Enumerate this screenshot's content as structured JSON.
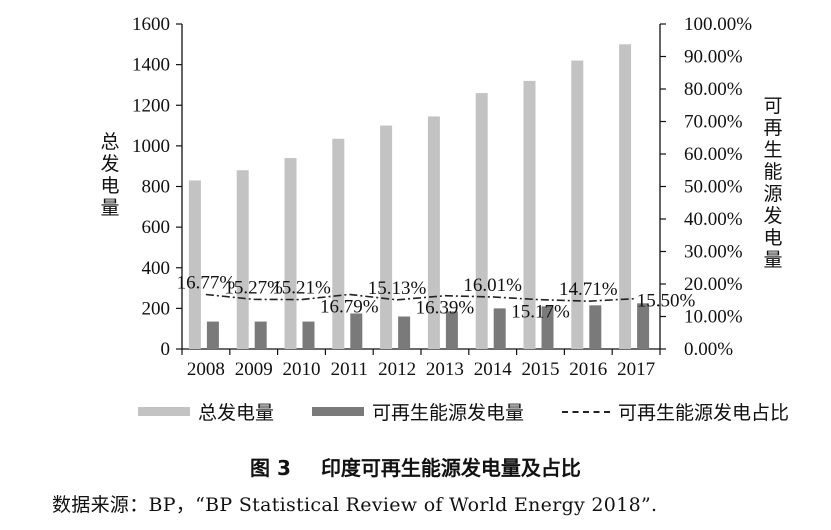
{
  "chart_data": {
    "type": "bar",
    "categories": [
      "2008",
      "2009",
      "2010",
      "2011",
      "2012",
      "2013",
      "2014",
      "2015",
      "2016",
      "2017"
    ],
    "series": [
      {
        "name": "总发电量",
        "type": "bar",
        "axis": "left",
        "color": "#c3c3c3",
        "values": [
          830,
          880,
          940,
          1035,
          1100,
          1145,
          1260,
          1320,
          1420,
          1500
        ]
      },
      {
        "name": "可再生能源发电量",
        "type": "bar",
        "axis": "left",
        "color": "#7a7a7a",
        "values": [
          135,
          135,
          135,
          175,
          160,
          185,
          200,
          210,
          215,
          225
        ]
      },
      {
        "name": "可再生能源发电占比",
        "type": "line",
        "axis": "right",
        "color": "#222222",
        "style": "dash-dot",
        "values": [
          16.77,
          15.27,
          15.21,
          16.79,
          15.13,
          16.39,
          16.01,
          15.17,
          14.71,
          15.5
        ],
        "labels": [
          "16.77%",
          "15.27%",
          "15.21%",
          "16.79%",
          "15.13%",
          "16.39%",
          "16.01%",
          "15.17%",
          "14.71%",
          "15.50%"
        ]
      }
    ],
    "ylabel": "总发电量",
    "y2label": "可再生能源发电量",
    "ylim": [
      0,
      1600
    ],
    "yticks": [
      "0",
      "200",
      "400",
      "600",
      "800",
      "1000",
      "1200",
      "1400",
      "1600"
    ],
    "y2lim": [
      0,
      100
    ],
    "y2ticks": [
      "0.00%",
      "10.00%",
      "20.00%",
      "30.00%",
      "40.00%",
      "50.00%",
      "60.00%",
      "70.00%",
      "80.00%",
      "90.00%",
      "100.00%"
    ],
    "legend_position": "bottom",
    "grid": false
  },
  "legend": {
    "total": "总发电量",
    "renew": "可再生能源发电量",
    "ratio": "可再生能源发电占比"
  },
  "caption": {
    "number": "图 3",
    "title": "印度可再生能源发电量及占比"
  },
  "source": "数据来源：BP，“BP Statistical Review of World Energy 2018”."
}
